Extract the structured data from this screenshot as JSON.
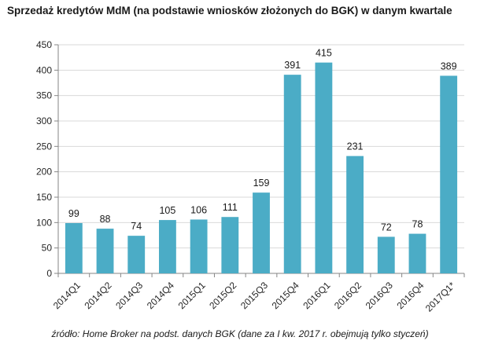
{
  "chart_data": {
    "type": "bar",
    "title": "Sprzedaż kredytów MdM (na podstawie wniosków złożonych do BGK) w danym kwartale",
    "source": "źródło: Home Broker na podst. danych BGK (dane za I kw. 2017 r. obejmują tylko styczeń)",
    "categories": [
      "2014Q1",
      "2014Q2",
      "2014Q3",
      "2014Q4",
      "2015Q1",
      "2015Q2",
      "2015Q3",
      "2015Q4",
      "2016Q1",
      "2016Q2",
      "2016Q3",
      "2016Q4",
      "2017Q1*"
    ],
    "values": [
      99,
      88,
      74,
      105,
      106,
      111,
      159,
      391,
      415,
      231,
      72,
      78,
      389
    ],
    "value_labels": [
      "99",
      "88",
      "74",
      "105",
      "106",
      "111",
      "159",
      "391",
      "415",
      "231",
      "72",
      "78",
      "389"
    ],
    "ylim": [
      0,
      450
    ],
    "yticks": [
      "0",
      "50",
      "100",
      "150",
      "200",
      "250",
      "300",
      "350",
      "400",
      "450"
    ],
    "bar_color": "#4bacc6",
    "grid": true,
    "legend": "none"
  }
}
